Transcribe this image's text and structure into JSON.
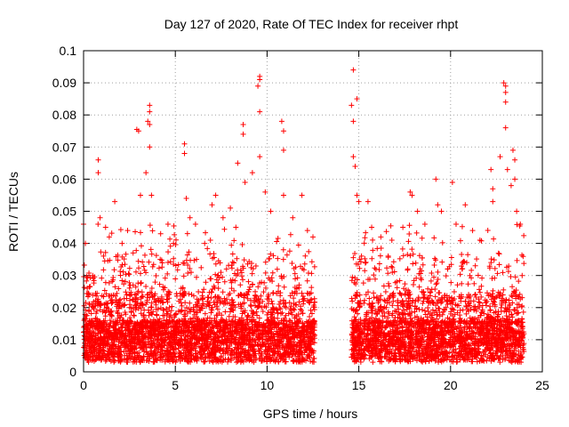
{
  "chart_data": {
    "type": "scatter",
    "title": "Day 127 of 2020, Rate Of TEC Index for receiver rhpt",
    "xlabel": "GPS time / hours",
    "ylabel": "ROTI / TECUs",
    "xlim": [
      0,
      25
    ],
    "ylim": [
      0,
      0.1
    ],
    "grid": true,
    "marker": "+",
    "series_color": "#ff0000",
    "x_ticks": [
      {
        "value": 0,
        "label": "0"
      },
      {
        "value": 5,
        "label": "5"
      },
      {
        "value": 10,
        "label": "10"
      },
      {
        "value": 15,
        "label": "15"
      },
      {
        "value": 20,
        "label": "20"
      },
      {
        "value": 25,
        "label": "25"
      }
    ],
    "y_ticks": [
      {
        "value": 0,
        "label": "0"
      },
      {
        "value": 0.01,
        "label": "0.01"
      },
      {
        "value": 0.02,
        "label": "0.02"
      },
      {
        "value": 0.03,
        "label": "0.03"
      },
      {
        "value": 0.04,
        "label": "0.04"
      },
      {
        "value": 0.05,
        "label": "0.05"
      },
      {
        "value": 0.06,
        "label": "0.06"
      },
      {
        "value": 0.07,
        "label": "0.07"
      },
      {
        "value": 0.08,
        "label": "0.08"
      },
      {
        "value": 0.09,
        "label": "0.09"
      },
      {
        "value": 0.1,
        "label": "0.1"
      }
    ],
    "data_coverage_hours": [
      [
        0.0,
        12.6
      ],
      [
        14.6,
        24.0
      ]
    ],
    "series": [
      {
        "name": "ROTI",
        "points": [
          [
            0.0,
            0.046
          ],
          [
            0.1,
            0.04
          ],
          [
            0.2,
            0.026
          ],
          [
            0.3,
            0.024
          ],
          [
            0.5,
            0.03
          ],
          [
            0.8,
            0.066
          ],
          [
            0.8,
            0.062
          ],
          [
            0.9,
            0.048
          ],
          [
            1.2,
            0.045
          ],
          [
            1.4,
            0.042
          ],
          [
            1.7,
            0.053
          ],
          [
            2.1,
            0.04
          ],
          [
            2.4,
            0.044
          ],
          [
            2.7,
            0.037
          ],
          [
            2.9,
            0.0755
          ],
          [
            3.0,
            0.075
          ],
          [
            3.1,
            0.055
          ],
          [
            3.4,
            0.062
          ],
          [
            3.5,
            0.078
          ],
          [
            3.6,
            0.083
          ],
          [
            3.6,
            0.081
          ],
          [
            3.6,
            0.077
          ],
          [
            3.6,
            0.07
          ],
          [
            3.7,
            0.055
          ],
          [
            4.2,
            0.043
          ],
          [
            4.6,
            0.046
          ],
          [
            4.9,
            0.04
          ],
          [
            5.5,
            0.071
          ],
          [
            5.5,
            0.068
          ],
          [
            5.6,
            0.054
          ],
          [
            5.8,
            0.048
          ],
          [
            6.1,
            0.046
          ],
          [
            6.6,
            0.04
          ],
          [
            7.0,
            0.052
          ],
          [
            7.2,
            0.055
          ],
          [
            7.6,
            0.048
          ],
          [
            8.0,
            0.051
          ],
          [
            8.3,
            0.045
          ],
          [
            8.4,
            0.065
          ],
          [
            8.7,
            0.077
          ],
          [
            8.7,
            0.074
          ],
          [
            8.8,
            0.059
          ],
          [
            9.2,
            0.062
          ],
          [
            9.5,
            0.089
          ],
          [
            9.6,
            0.092
          ],
          [
            9.6,
            0.091
          ],
          [
            9.6,
            0.081
          ],
          [
            9.6,
            0.067
          ],
          [
            9.9,
            0.056
          ],
          [
            10.2,
            0.05
          ],
          [
            10.8,
            0.078
          ],
          [
            10.9,
            0.075
          ],
          [
            10.9,
            0.069
          ],
          [
            10.9,
            0.055
          ],
          [
            11.4,
            0.048
          ],
          [
            11.9,
            0.055
          ],
          [
            12.2,
            0.044
          ],
          [
            12.5,
            0.042
          ],
          [
            14.6,
            0.083
          ],
          [
            14.7,
            0.094
          ],
          [
            14.7,
            0.078
          ],
          [
            14.7,
            0.067
          ],
          [
            14.8,
            0.064
          ],
          [
            14.9,
            0.085
          ],
          [
            14.9,
            0.055
          ],
          [
            15.0,
            0.053
          ],
          [
            15.5,
            0.053
          ],
          [
            15.7,
            0.045
          ],
          [
            16.2,
            0.042
          ],
          [
            16.8,
            0.041
          ],
          [
            17.4,
            0.045
          ],
          [
            17.8,
            0.056
          ],
          [
            17.9,
            0.055
          ],
          [
            18.2,
            0.05
          ],
          [
            18.6,
            0.046
          ],
          [
            19.2,
            0.06
          ],
          [
            19.3,
            0.052
          ],
          [
            19.5,
            0.05
          ],
          [
            20.1,
            0.059
          ],
          [
            20.3,
            0.046
          ],
          [
            20.8,
            0.052
          ],
          [
            21.2,
            0.044
          ],
          [
            21.6,
            0.041
          ],
          [
            22.2,
            0.063
          ],
          [
            22.3,
            0.057
          ],
          [
            22.3,
            0.053
          ],
          [
            22.7,
            0.067
          ],
          [
            22.9,
            0.09
          ],
          [
            23.0,
            0.089
          ],
          [
            23.0,
            0.087
          ],
          [
            23.0,
            0.084
          ],
          [
            23.0,
            0.076
          ],
          [
            23.1,
            0.063
          ],
          [
            23.3,
            0.058
          ],
          [
            23.4,
            0.069
          ],
          [
            23.5,
            0.066
          ],
          [
            23.5,
            0.06
          ],
          [
            23.6,
            0.05
          ],
          [
            23.8,
            0.046
          ],
          [
            23.9,
            0.03
          ]
        ]
      }
    ]
  }
}
